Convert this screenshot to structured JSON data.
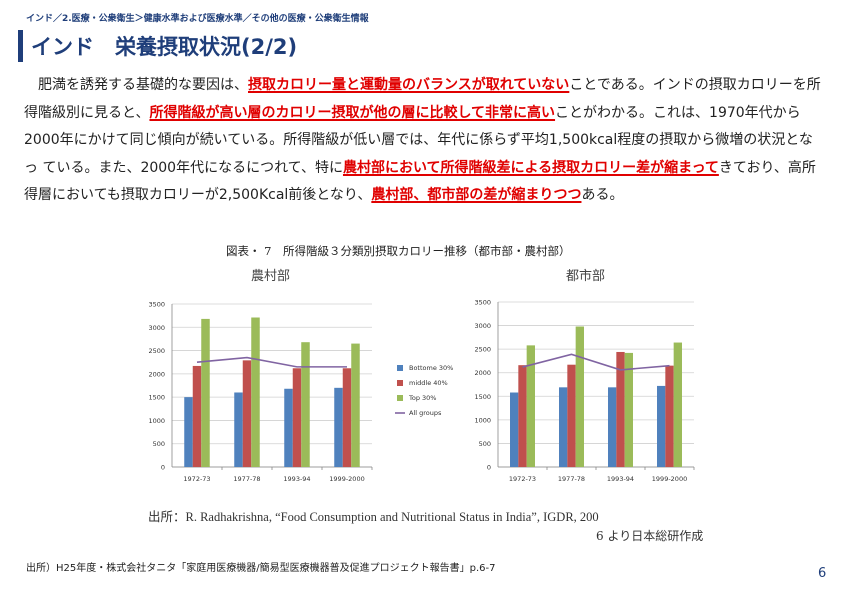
{
  "header": {
    "breadcrumb": "インド／2.医療・公衆衛生＞健康水準および医療水準／その他の医療・公衆衛生情報",
    "title": "インド　栄養摂取状況(2/2)"
  },
  "body": {
    "p1": "　肥満を誘発する基礎的な要因は、",
    "h1": "摂取カロリー量と運動量のバランスが取れていない",
    "p2": "ことである。インドの摂取カロリーを所得階級別に見ると、",
    "h2": "所得階級が高い層のカロリー摂取が他の層に比較して非常に高い",
    "p3": "ことがわかる。これは、1970年代から2000年にかけて同じ傾向が続いている。所得階級が低い層では、年代に係らず平均1,500kcal程度の摂取から微増の状況となっ ている。また、2000年代になるにつれて、特に",
    "h3": "農村部において所得階級差による摂取カロリー差が縮まって",
    "p4": "きており、高所得層においても摂取カロリーが2,500Kcal前後となり、",
    "h4": "農村部、都市部の差が縮まりつつ",
    "p5": "ある。"
  },
  "figure": {
    "caption": "図表・ 7　所得階級３分類別摂取カロリー推移（都市部・農村部）",
    "source_line1": "出所：R. Radhakrishna, “Food Consumption and Nutritional Status in India”, IGDR, 200",
    "source_line2": "6 より日本総研作成"
  },
  "chart_data": [
    {
      "type": "bar",
      "title": "農村部",
      "categories": [
        "1972-73",
        "1977-78",
        "1993-94",
        "1999-2000"
      ],
      "yticks": [
        "0",
        "500",
        "1000",
        "1500",
        "2000",
        "2500",
        "3000",
        "3500"
      ],
      "ylim": [
        0,
        3500
      ],
      "series": [
        {
          "name": "Bottome 30%",
          "kind": "bar",
          "color": "#4f81bd",
          "values": [
            1500,
            1600,
            1680,
            1700
          ]
        },
        {
          "name": "middle 40%",
          "kind": "bar",
          "color": "#c0504d",
          "values": [
            2170,
            2290,
            2120,
            2120
          ]
        },
        {
          "name": "Top 30%",
          "kind": "bar",
          "color": "#9bbb59",
          "values": [
            3180,
            3210,
            2680,
            2650
          ]
        },
        {
          "name": "All groups",
          "kind": "line",
          "color": "#8064a2",
          "values": [
            2250,
            2350,
            2150,
            2150
          ]
        }
      ],
      "grid": true,
      "legend": "right"
    },
    {
      "type": "bar",
      "title": "都市部",
      "categories": [
        "1972-73",
        "1977-78",
        "1993-94",
        "1999-2000"
      ],
      "yticks": [
        "0",
        "500",
        "1000",
        "1500",
        "2000",
        "2500",
        "3000",
        "3500"
      ],
      "ylim": [
        0,
        3500
      ],
      "series": [
        {
          "name": "Bottome 30%",
          "kind": "bar",
          "color": "#4f81bd",
          "values": [
            1580,
            1690,
            1690,
            1720
          ]
        },
        {
          "name": "middle 40%",
          "kind": "bar",
          "color": "#c0504d",
          "values": [
            2160,
            2170,
            2440,
            2150
          ]
        },
        {
          "name": "Top 30%",
          "kind": "bar",
          "color": "#9bbb59",
          "values": [
            2580,
            2980,
            2420,
            2640
          ]
        },
        {
          "name": "All groups",
          "kind": "line",
          "color": "#8064a2",
          "values": [
            2120,
            2390,
            2060,
            2150
          ]
        }
      ],
      "grid": true,
      "legend": "none"
    }
  ],
  "footer": {
    "note": "出所）H25年度・株式会社タニタ「家庭用医療機器/簡易型医療機器普及促進プロジェクト報告書」p.6-7",
    "page_number": "6"
  }
}
